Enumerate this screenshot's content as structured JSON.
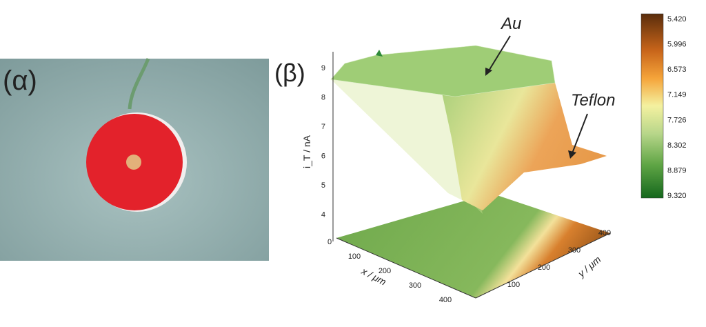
{
  "panels": [
    {
      "label": "(α)"
    },
    {
      "label": "(β)",
      "z_axis": {
        "title": "i_T / nA",
        "ticks": [
          "9",
          "8",
          "7",
          "6",
          "5",
          "4"
        ]
      },
      "x_axis": {
        "title": "x / μm",
        "ticks": [
          "0",
          "100",
          "200",
          "300",
          "400"
        ]
      },
      "y_axis": {
        "title": "y / μm",
        "ticks": [
          "100",
          "200",
          "300",
          "400"
        ]
      },
      "annotations": [
        "Au",
        "Teflon"
      ],
      "colorbar": {
        "labels": [
          "5.420",
          "5.996",
          "6.573",
          "7.149",
          "7.726",
          "8.302",
          "8.879",
          "9.320"
        ]
      }
    }
  ]
}
